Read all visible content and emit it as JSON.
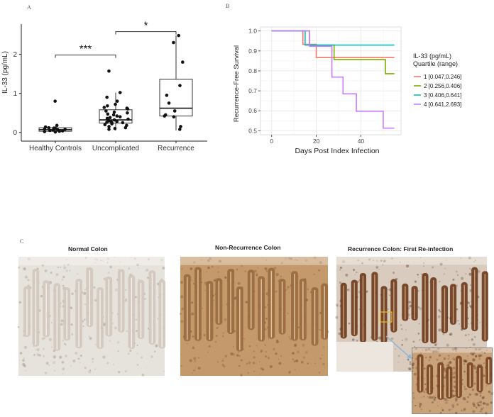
{
  "panels": {
    "a": {
      "letter": "A"
    },
    "b": {
      "letter": "B"
    },
    "c": {
      "letter": "C"
    }
  },
  "chart_data": [
    {
      "type": "scatter",
      "subtype": "boxplot-with-jitter",
      "ylabel": "IL-33 (pg/mL)",
      "xlabel": "",
      "categories": [
        "Healthy Controls",
        "Uncomplicated",
        "Recurrence"
      ],
      "ylim": [
        -0.15,
        2.7
      ],
      "yticks": [
        0,
        1,
        2
      ],
      "boxes": [
        {
          "category": "Healthy Controls",
          "min": 0.0,
          "q1": 0.03,
          "median": 0.07,
          "q3": 0.12,
          "max": 0.16
        },
        {
          "category": "Uncomplicated",
          "min": 0.05,
          "q1": 0.24,
          "median": 0.32,
          "q3": 0.58,
          "max": 1.02
        },
        {
          "category": "Recurrence",
          "min": 0.05,
          "q1": 0.42,
          "median": 0.62,
          "q3": 1.36,
          "max": 2.48
        }
      ],
      "points": [
        {
          "category": "Healthy Controls",
          "values": [
            0.8,
            0.18,
            0.14,
            0.12,
            0.11,
            0.1,
            0.09,
            0.08,
            0.07,
            0.06,
            0.05,
            0.04,
            0.03,
            0.02,
            0.01
          ]
        },
        {
          "category": "Uncomplicated",
          "values": [
            1.57,
            1.02,
            0.9,
            0.8,
            0.72,
            0.68,
            0.64,
            0.62,
            0.6,
            0.55,
            0.52,
            0.5,
            0.47,
            0.45,
            0.42,
            0.4,
            0.38,
            0.36,
            0.34,
            0.32,
            0.3,
            0.28,
            0.27,
            0.26,
            0.25,
            0.24,
            0.22,
            0.2,
            0.18,
            0.15,
            0.12,
            0.1,
            0.08
          ]
        },
        {
          "category": "Recurrence",
          "values": [
            2.48,
            2.3,
            1.8,
            1.2,
            0.95,
            0.75,
            0.55,
            0.45,
            0.42,
            0.4,
            0.15,
            0.08
          ]
        }
      ],
      "significance": [
        {
          "from": "Healthy Controls",
          "to": "Uncomplicated",
          "label": "***",
          "y": 1.98
        },
        {
          "from": "Uncomplicated",
          "to": "Recurrence",
          "label": "*",
          "y": 2.58
        }
      ]
    },
    {
      "type": "line",
      "subtype": "kaplan-meier",
      "ylabel": "Recurrence-Free Survival",
      "xlabel": "Days Post Index Infection",
      "xlim": [
        -5,
        58
      ],
      "ylim": [
        0.48,
        1.02
      ],
      "xticks": [
        0,
        20,
        40
      ],
      "yticks": [
        0.5,
        0.6,
        0.7,
        0.8,
        0.9,
        1.0
      ],
      "grid": true,
      "legend": {
        "title_line1": "IL-33 (pg/mL)",
        "title_line2": "Quartile (range)",
        "placement": "right"
      },
      "series": [
        {
          "name": "1 [0.047,0.246]",
          "color": "#f8766d",
          "steps": [
            [
              0,
              1.0
            ],
            [
              14,
              1.0
            ],
            [
              14,
              0.933
            ],
            [
              20,
              0.933
            ],
            [
              20,
              0.867
            ],
            [
              55,
              0.867
            ]
          ]
        },
        {
          "name": "2 [0.256,0.406]",
          "color": "#7cae00",
          "steps": [
            [
              0,
              1.0
            ],
            [
              17,
              1.0
            ],
            [
              17,
              0.929
            ],
            [
              28,
              0.929
            ],
            [
              28,
              0.857
            ],
            [
              51,
              0.857
            ],
            [
              51,
              0.786
            ],
            [
              55,
              0.786
            ]
          ]
        },
        {
          "name": "3 [0.406,0.641]",
          "color": "#00bfc4",
          "steps": [
            [
              0,
              1.0
            ],
            [
              15,
              1.0
            ],
            [
              15,
              0.929
            ],
            [
              55,
              0.929
            ]
          ]
        },
        {
          "name": "4 [0.641,2.693]",
          "color": "#c77cff",
          "steps": [
            [
              0,
              1.0
            ],
            [
              17,
              1.0
            ],
            [
              17,
              0.923
            ],
            [
              27,
              0.923
            ],
            [
              27,
              0.769
            ],
            [
              32,
              0.769
            ],
            [
              32,
              0.685
            ],
            [
              38,
              0.685
            ],
            [
              38,
              0.598
            ],
            [
              50,
              0.598
            ],
            [
              50,
              0.513
            ],
            [
              55,
              0.513
            ]
          ]
        }
      ]
    }
  ],
  "micrographs": [
    {
      "title": "Normal Colon",
      "stain": "light"
    },
    {
      "title": "Non-Recurrence Colon",
      "stain": "medium"
    },
    {
      "title": "Recurrence Colon: First Re-infection",
      "stain": "dark"
    }
  ],
  "colors": {
    "axis": "#222222",
    "grid": "#ebebeb",
    "inset_arrow": "#8fb4d8",
    "inset_box": "#e8c020"
  }
}
